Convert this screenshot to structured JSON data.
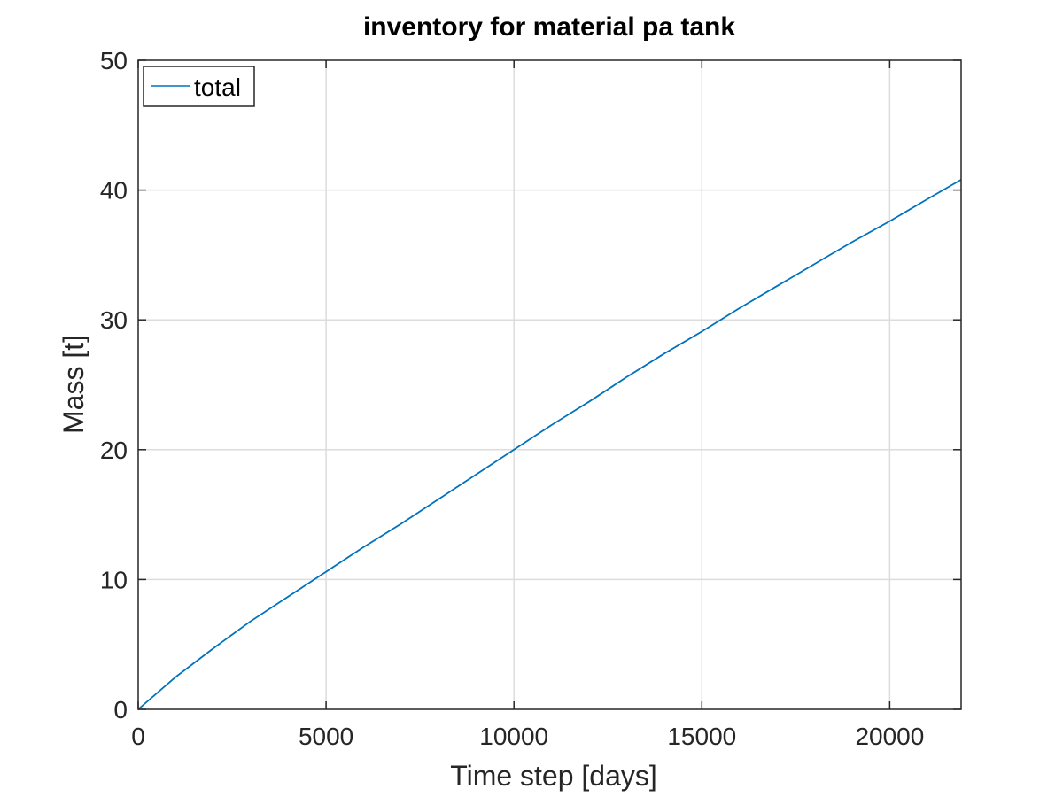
{
  "chart_data": {
    "type": "line",
    "title": "inventory for material pa tank",
    "xlabel": "Time step [days]",
    "ylabel": "Mass [t]",
    "xlim": [
      0,
      21900
    ],
    "ylim": [
      0,
      50
    ],
    "xticks": [
      0,
      5000,
      10000,
      15000,
      20000
    ],
    "yticks": [
      0,
      10,
      20,
      30,
      40,
      50
    ],
    "xtick_labels": [
      "0",
      "5000",
      "10000",
      "15000",
      "20000"
    ],
    "ytick_labels": [
      "0",
      "10",
      "20",
      "30",
      "40",
      "50"
    ],
    "grid": true,
    "legend_position": "top-left",
    "series": [
      {
        "name": "total",
        "color": "#0072BD",
        "x": [
          0,
          1000,
          2000,
          3000,
          4000,
          5000,
          6000,
          7000,
          8000,
          9000,
          10000,
          11000,
          12000,
          13000,
          14000,
          15000,
          16000,
          17000,
          18000,
          19000,
          20000,
          21000,
          21900
        ],
        "y": [
          0,
          2.5,
          4.7,
          6.8,
          8.7,
          10.6,
          12.5,
          14.3,
          16.2,
          18.1,
          20.0,
          21.9,
          23.7,
          25.6,
          27.4,
          29.1,
          30.9,
          32.6,
          34.3,
          36.0,
          37.6,
          39.3,
          40.8
        ]
      }
    ]
  },
  "colors": {
    "grid": "#dcdcdc",
    "axes": "#262626",
    "background": "#ffffff"
  }
}
